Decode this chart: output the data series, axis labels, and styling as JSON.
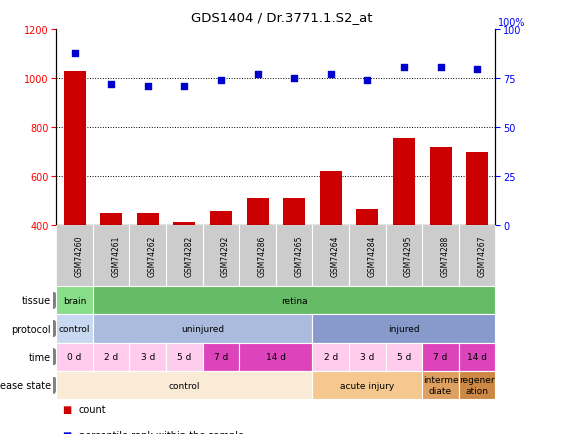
{
  "title": "GDS1404 / Dr.3771.1.S2_at",
  "samples": [
    "GSM74260",
    "GSM74261",
    "GSM74262",
    "GSM74282",
    "GSM74292",
    "GSM74286",
    "GSM74265",
    "GSM74264",
    "GSM74284",
    "GSM74295",
    "GSM74288",
    "GSM74267"
  ],
  "bar_values": [
    1030,
    450,
    450,
    415,
    460,
    510,
    510,
    620,
    465,
    755,
    720,
    700
  ],
  "dot_values": [
    88,
    72,
    71,
    71,
    74,
    77,
    75,
    77,
    74,
    81,
    81,
    80
  ],
  "bar_color": "#cc0000",
  "dot_color": "#0000cc",
  "ylim_left": [
    400,
    1200
  ],
  "ylim_right": [
    0,
    100
  ],
  "yticks_left": [
    400,
    600,
    800,
    1000,
    1200
  ],
  "yticks_right": [
    0,
    25,
    50,
    75,
    100
  ],
  "tissue_row": [
    {
      "label": "brain",
      "start": 0,
      "end": 1,
      "color": "#88dd88"
    },
    {
      "label": "retina",
      "start": 1,
      "end": 12,
      "color": "#66bb66"
    }
  ],
  "protocol_row": [
    {
      "label": "control",
      "start": 0,
      "end": 1,
      "color": "#c8d8f0"
    },
    {
      "label": "uninjured",
      "start": 1,
      "end": 7,
      "color": "#aabbdd"
    },
    {
      "label": "injured",
      "start": 7,
      "end": 12,
      "color": "#8899cc"
    }
  ],
  "time_spans": [
    {
      "label": "0 d",
      "start": 0,
      "end": 1,
      "color": "#ffccee"
    },
    {
      "label": "2 d",
      "start": 1,
      "end": 2,
      "color": "#ffccee"
    },
    {
      "label": "3 d",
      "start": 2,
      "end": 3,
      "color": "#ffccee"
    },
    {
      "label": "5 d",
      "start": 3,
      "end": 4,
      "color": "#ffccee"
    },
    {
      "label": "7 d",
      "start": 4,
      "end": 5,
      "color": "#dd44bb"
    },
    {
      "label": "14 d",
      "start": 5,
      "end": 7,
      "color": "#dd44bb"
    },
    {
      "label": "2 d",
      "start": 7,
      "end": 8,
      "color": "#ffccee"
    },
    {
      "label": "3 d",
      "start": 8,
      "end": 9,
      "color": "#ffccee"
    },
    {
      "label": "5 d",
      "start": 9,
      "end": 10,
      "color": "#ffccee"
    },
    {
      "label": "7 d",
      "start": 10,
      "end": 11,
      "color": "#dd44bb"
    },
    {
      "label": "14 d",
      "start": 11,
      "end": 12,
      "color": "#dd44bb"
    }
  ],
  "disease_spans": [
    {
      "label": "control",
      "start": 0,
      "end": 7,
      "color": "#faebd7"
    },
    {
      "label": "acute injury",
      "start": 7,
      "end": 10,
      "color": "#f5c890"
    },
    {
      "label": "interme\ndiate",
      "start": 10,
      "end": 11,
      "color": "#dda060"
    },
    {
      "label": "regener\nation",
      "start": 11,
      "end": 12,
      "color": "#cc8844"
    }
  ],
  "row_labels": [
    "tissue",
    "protocol",
    "time",
    "disease state"
  ],
  "legend_count_color": "#cc0000",
  "legend_dot_color": "#0000cc"
}
